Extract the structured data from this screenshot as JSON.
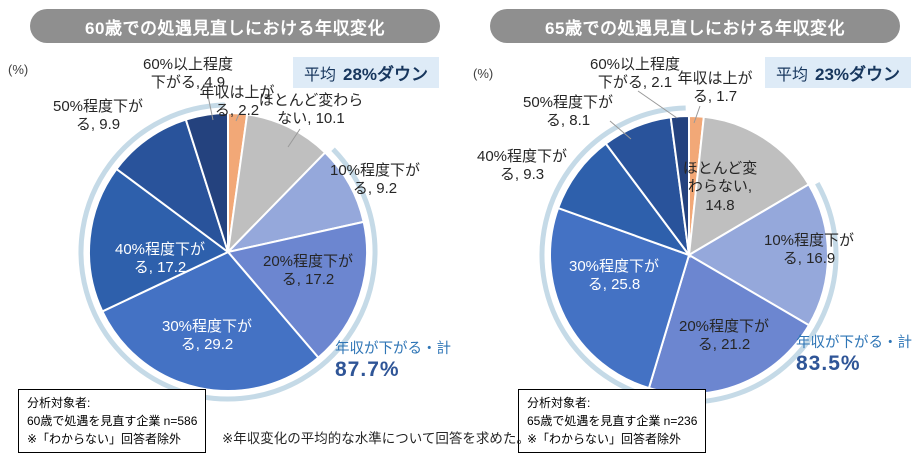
{
  "footnote": "※年収変化の平均的な水準について回答を求めた。",
  "colors": {
    "title_bg": "#8F8F8F",
    "avg_box_bg": "#DEEBF7",
    "avg_text": "#17365D",
    "total_label_blue": "#2E75B6",
    "total_value_blue": "#2F5597",
    "highlight_arc": "#C5DAE7",
    "leader_line": "#999999"
  },
  "chart_data": [
    {
      "type": "pie",
      "title": "60歳での処遇見直しにおける年収変化",
      "unit_label": "(%)",
      "average": {
        "label": "平均",
        "value": "28%ダウン"
      },
      "total_down": {
        "label": "年収が下がる・計",
        "value": "87.7%"
      },
      "analysis_box": [
        "分析対象者:",
        "60歳で処遇を見直す企業 n=586",
        "※「わからない」回答者除外"
      ],
      "layout_hints": {
        "start_angle_deg": 0,
        "direction": "clockwise",
        "legend": "none",
        "labels": "callouts"
      },
      "highlight_arc": {
        "starts_after_slice": 1,
        "color": "#C5DAE7",
        "meaning": "年収が下がる・計"
      },
      "slices": [
        {
          "label": "年収は上がる",
          "value": 2.2,
          "display": "年収は上がる, 2.2",
          "color": "#F2A877"
        },
        {
          "label": "ほとんど変わらない",
          "value": 10.1,
          "display": "ほとんど変わらない, 10.1",
          "color": "#BFBFBF"
        },
        {
          "label": "10%程度下がる",
          "value": 9.2,
          "display": "10%程度下がる, 9.2",
          "color": "#95A8DB"
        },
        {
          "label": "20%程度下がる",
          "value": 17.2,
          "display": "20%程度下がる, 17.2",
          "color": "#6C86D0"
        },
        {
          "label": "30%程度下がる",
          "value": 29.2,
          "display": "30%程度下がる, 29.2",
          "color": "#4472C4"
        },
        {
          "label": "40%程度下がる",
          "value": 17.2,
          "display": "40%程度下がる, 17.2",
          "color": "#2E60AC"
        },
        {
          "label": "50%程度下がる",
          "value": 9.9,
          "display": "50%程度下がる, 9.9",
          "color": "#29539B"
        },
        {
          "label": "60%以上程度下がる",
          "value": 4.9,
          "display": "60%以上程度下がる, 4.9",
          "color": "#24427E"
        }
      ]
    },
    {
      "type": "pie",
      "title": "65歳での処遇見直しにおける年収変化",
      "unit_label": "(%)",
      "average": {
        "label": "平均",
        "value": "23%ダウン"
      },
      "total_down": {
        "label": "年収が下がる・計",
        "value": "83.5%"
      },
      "analysis_box": [
        "分析対象者:",
        "65歳で処遇を見直す企業 n=236",
        "※「わからない」回答者除外"
      ],
      "layout_hints": {
        "start_angle_deg": 0,
        "direction": "clockwise",
        "legend": "none",
        "labels": "callouts"
      },
      "highlight_arc": {
        "starts_after_slice": 1,
        "color": "#C5DAE7",
        "meaning": "年収が下がる・計"
      },
      "slices": [
        {
          "label": "年収は上がる",
          "value": 1.7,
          "display": "年収は上がる, 1.7",
          "color": "#F2A877"
        },
        {
          "label": "ほとんど変わらない",
          "value": 14.8,
          "display": "ほとんど変わらない, 14.8",
          "color": "#BFBFBF"
        },
        {
          "label": "10%程度下がる",
          "value": 16.9,
          "display": "10%程度下がる, 16.9",
          "color": "#95A8DB"
        },
        {
          "label": "20%程度下がる",
          "value": 21.2,
          "display": "20%程度下がる, 21.2",
          "color": "#6C86D0"
        },
        {
          "label": "30%程度下がる",
          "value": 25.8,
          "display": "30%程度下がる, 25.8",
          "color": "#4472C4"
        },
        {
          "label": "40%程度下がる",
          "value": 9.3,
          "display": "40%程度下がる, 9.3",
          "color": "#2E60AC"
        },
        {
          "label": "50%程度下がる",
          "value": 8.1,
          "display": "50%程度下がる, 8.1",
          "color": "#29539B"
        },
        {
          "label": "60%以上程度下がる",
          "value": 2.1,
          "display": "60%以上程度下がる, 2.1",
          "color": "#24427E"
        }
      ]
    }
  ]
}
